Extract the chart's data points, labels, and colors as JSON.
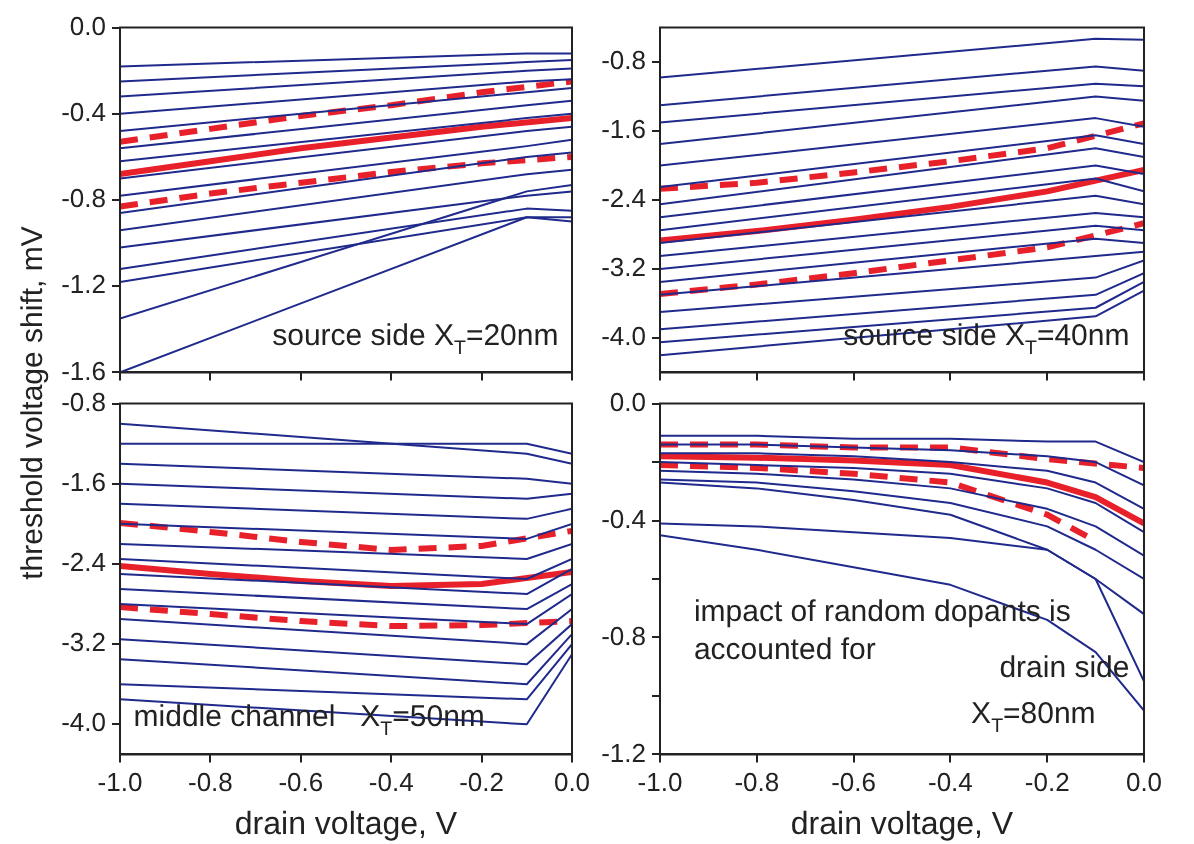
{
  "chart_data": [
    {
      "type": "line",
      "ylabel": "threshold voltage shift, mV",
      "xlim": [
        -1,
        0
      ],
      "ylim": [
        -1.6,
        0
      ],
      "xticks": [
        {
          "value": -1,
          "label": null
        },
        {
          "value": -0.8,
          "label": null
        },
        {
          "value": -0.6,
          "label": null
        },
        {
          "value": -0.4,
          "label": null
        },
        {
          "value": -0.2,
          "label": null
        },
        {
          "value": 0,
          "label": null
        }
      ],
      "yticks": [
        {
          "value": -1.6,
          "label": "-1.6"
        },
        {
          "value": -1.2,
          "label": "-1.2"
        },
        {
          "value": -0.8,
          "label": "-0.8"
        },
        {
          "value": -0.4,
          "label": "-0.4"
        },
        {
          "value": 0,
          "label": "0.0"
        }
      ],
      "tick_labels": "y",
      "grid": false,
      "legend": false,
      "marker": "none",
      "annotations": [
        "source side X$_{T}$=20nm"
      ],
      "x": [
        -1,
        -0.1,
        0
      ],
      "series": [
        {
          "color": "#1f2a8c",
          "values": [
            -0.18,
            -0.12,
            -0.12
          ]
        },
        {
          "color": "#1f2a8c",
          "values": [
            -0.25,
            -0.16,
            -0.15
          ]
        },
        {
          "color": "#1f2a8c",
          "values": [
            -0.32,
            -0.2,
            -0.19
          ]
        },
        {
          "color": "#1f2a8c",
          "values": [
            -0.4,
            -0.25,
            -0.24
          ]
        },
        {
          "color": "#1f2a8c",
          "values": [
            -0.48,
            -0.3,
            -0.28
          ]
        },
        {
          "color": "#1f2a8c",
          "values": [
            -0.56,
            -0.36,
            -0.34
          ]
        },
        {
          "color": "#1f2a8c",
          "values": [
            -0.62,
            -0.42,
            -0.4
          ]
        },
        {
          "color": "#1f2a8c",
          "values": [
            -0.7,
            -0.48,
            -0.46
          ]
        },
        {
          "color": "#1f2a8c",
          "values": [
            -0.78,
            -0.55,
            -0.52
          ]
        },
        {
          "color": "#1f2a8c",
          "values": [
            -0.86,
            -0.6,
            -0.58
          ]
        },
        {
          "color": "#1f2a8c",
          "values": [
            -0.94,
            -0.68,
            -0.66
          ]
        },
        {
          "color": "#1f2a8c",
          "values": [
            -1.02,
            -0.78,
            -0.76
          ]
        },
        {
          "color": "#1f2a8c",
          "values": [
            -1.12,
            -0.84,
            -0.85
          ]
        },
        {
          "color": "#1f2a8c",
          "values": [
            -1.18,
            -0.88,
            -0.9
          ]
        },
        {
          "color": "#1f2a8c",
          "values": [
            -1.35,
            -0.76,
            -0.73
          ]
        },
        {
          "color": "#1f2a8c",
          "values": [
            -1.6,
            -0.88,
            -0.88
          ]
        },
        {
          "color": "#e8202a",
          "line_style": "dashed",
          "x": [
            -1,
            -0.8,
            -0.6,
            -0.4,
            -0.2,
            0
          ],
          "values": [
            -0.53,
            -0.47,
            -0.41,
            -0.36,
            -0.3,
            -0.25
          ]
        },
        {
          "color": "#e8202a",
          "line_style": "solid",
          "x": [
            -1,
            -0.8,
            -0.6,
            -0.4,
            -0.2,
            0
          ],
          "values": [
            -0.68,
            -0.62,
            -0.56,
            -0.51,
            -0.46,
            -0.42
          ]
        },
        {
          "color": "#e8202a",
          "line_style": "dashed",
          "x": [
            -1,
            -0.8,
            -0.6,
            -0.4,
            -0.2,
            0
          ],
          "values": [
            -0.83,
            -0.77,
            -0.72,
            -0.67,
            -0.63,
            -0.6
          ]
        }
      ]
    },
    {
      "type": "line",
      "xlim": [
        -1,
        0
      ],
      "ylim": [
        -4.4,
        -0.4
      ],
      "xticks": [
        {
          "value": -1,
          "label": null
        },
        {
          "value": -0.8,
          "label": null
        },
        {
          "value": -0.6,
          "label": null
        },
        {
          "value": -0.4,
          "label": null
        },
        {
          "value": -0.2,
          "label": null
        },
        {
          "value": 0,
          "label": null
        }
      ],
      "yticks": [
        {
          "value": -4,
          "label": "-4.0"
        },
        {
          "value": -3.2,
          "label": "-3.2"
        },
        {
          "value": -2.4,
          "label": "-2.4"
        },
        {
          "value": -1.6,
          "label": "-1.6"
        },
        {
          "value": -0.8,
          "label": "-0.8"
        }
      ],
      "tick_labels": "y",
      "grid": false,
      "legend": false,
      "marker": "none",
      "annotations": [
        "source side X$_{T}$=40nm"
      ],
      "x": [
        -1,
        -0.1,
        0
      ],
      "series": [
        {
          "color": "#1f2a8c",
          "values": [
            -0.98,
            -0.53,
            -0.54
          ]
        },
        {
          "color": "#1f2a8c",
          "values": [
            -1.3,
            -0.85,
            -0.9
          ]
        },
        {
          "color": "#1f2a8c",
          "values": [
            -1.5,
            -1.05,
            -1.08
          ]
        },
        {
          "color": "#1f2a8c",
          "values": [
            -1.75,
            -1.2,
            -1.25
          ]
        },
        {
          "color": "#1f2a8c",
          "values": [
            -2.0,
            -1.45,
            -1.55
          ]
        },
        {
          "color": "#1f2a8c",
          "values": [
            -2.25,
            -1.65,
            -1.75
          ]
        },
        {
          "color": "#1f2a8c",
          "values": [
            -2.45,
            -1.8,
            -1.9
          ]
        },
        {
          "color": "#1f2a8c",
          "values": [
            -2.6,
            -2.0,
            -2.1
          ]
        },
        {
          "color": "#1f2a8c",
          "values": [
            -2.75,
            -2.15,
            -2.3
          ]
        },
        {
          "color": "#1f2a8c",
          "values": [
            -2.9,
            -2.35,
            -2.45
          ]
        },
        {
          "color": "#1f2a8c",
          "values": [
            -3.05,
            -2.55,
            -2.6
          ]
        },
        {
          "color": "#1f2a8c",
          "values": [
            -3.2,
            -2.7,
            -2.75
          ]
        },
        {
          "color": "#1f2a8c",
          "values": [
            -3.35,
            -2.85,
            -2.9
          ]
        },
        {
          "color": "#1f2a8c",
          "values": [
            -3.5,
            -3.05,
            -3.0
          ]
        },
        {
          "color": "#1f2a8c",
          "values": [
            -3.7,
            -3.3,
            -3.1
          ]
        },
        {
          "color": "#1f2a8c",
          "values": [
            -3.9,
            -3.5,
            -3.25
          ]
        },
        {
          "color": "#1f2a8c",
          "values": [
            -4.05,
            -3.65,
            -3.35
          ]
        },
        {
          "color": "#1f2a8c",
          "values": [
            -4.2,
            -3.75,
            -3.45
          ]
        },
        {
          "color": "#e8202a",
          "line_style": "dashed",
          "x": [
            -1,
            -0.8,
            -0.6,
            -0.4,
            -0.2,
            0
          ],
          "values": [
            -2.27,
            -2.2,
            -2.08,
            -1.95,
            -1.8,
            -1.51
          ]
        },
        {
          "color": "#e8202a",
          "line_style": "solid",
          "x": [
            -1,
            -0.8,
            -0.6,
            -0.4,
            -0.2,
            0
          ],
          "values": [
            -2.87,
            -2.76,
            -2.63,
            -2.48,
            -2.3,
            -2.05
          ]
        },
        {
          "color": "#e8202a",
          "line_style": "dashed",
          "x": [
            -1,
            -0.8,
            -0.6,
            -0.4,
            -0.2,
            0
          ],
          "values": [
            -3.49,
            -3.38,
            -3.25,
            -3.1,
            -2.95,
            -2.67
          ]
        }
      ]
    },
    {
      "type": "line",
      "xlabel": "drain voltage, V",
      "xlim": [
        -1,
        0
      ],
      "ylim": [
        -4.3,
        -0.8
      ],
      "xticks": [
        {
          "value": -1,
          "label": "-1.0"
        },
        {
          "value": -0.8,
          "label": "-0.8"
        },
        {
          "value": -0.6,
          "label": "-0.6"
        },
        {
          "value": -0.4,
          "label": "-0.4"
        },
        {
          "value": -0.2,
          "label": "-0.2"
        },
        {
          "value": 0,
          "label": "0.0"
        }
      ],
      "yticks": [
        {
          "value": -4,
          "label": "-4.0"
        },
        {
          "value": -3.2,
          "label": "-3.2"
        },
        {
          "value": -2.4,
          "label": "-2.4"
        },
        {
          "value": -1.6,
          "label": "-1.6"
        },
        {
          "value": -0.8,
          "label": "-0.8"
        }
      ],
      "grid": false,
      "legend": false,
      "marker": "none",
      "annotations": [
        "middle channel   X$_{T}$=50nm"
      ],
      "x": [
        -1,
        -0.1,
        0
      ],
      "series": [
        {
          "color": "#1f2a8c",
          "values": [
            -1.0,
            -1.3,
            -1.4
          ]
        },
        {
          "color": "#1f2a8c",
          "values": [
            -1.2,
            -1.2,
            -1.3
          ]
        },
        {
          "color": "#1f2a8c",
          "values": [
            -1.4,
            -1.55,
            -1.6
          ]
        },
        {
          "color": "#1f2a8c",
          "values": [
            -1.6,
            -1.75,
            -1.7
          ]
        },
        {
          "color": "#1f2a8c",
          "values": [
            -1.8,
            -1.95,
            -1.85
          ]
        },
        {
          "color": "#1f2a8c",
          "values": [
            -2.0,
            -2.15,
            -2.0
          ]
        },
        {
          "color": "#1f2a8c",
          "values": [
            -2.2,
            -2.35,
            -2.2
          ]
        },
        {
          "color": "#1f2a8c",
          "values": [
            -2.35,
            -2.55,
            -2.35
          ]
        },
        {
          "color": "#1f2a8c",
          "values": [
            -2.5,
            -2.7,
            -2.45
          ]
        },
        {
          "color": "#1f2a8c",
          "values": [
            -2.65,
            -2.85,
            -2.6
          ]
        },
        {
          "color": "#1f2a8c",
          "values": [
            -2.8,
            -3.0,
            -2.7
          ]
        },
        {
          "color": "#1f2a8c",
          "values": [
            -2.95,
            -3.2,
            -2.85
          ]
        },
        {
          "color": "#1f2a8c",
          "values": [
            -3.15,
            -3.4,
            -3.0
          ]
        },
        {
          "color": "#1f2a8c",
          "values": [
            -3.35,
            -3.6,
            -3.1
          ]
        },
        {
          "color": "#1f2a8c",
          "values": [
            -3.6,
            -3.75,
            -3.2
          ]
        },
        {
          "color": "#1f2a8c",
          "values": [
            -3.75,
            -4.0,
            -3.3
          ]
        },
        {
          "color": "#e8202a",
          "line_style": "dashed",
          "x": [
            -1,
            -0.8,
            -0.6,
            -0.4,
            -0.2,
            0
          ],
          "values": [
            -1.99,
            -2.08,
            -2.18,
            -2.26,
            -2.22,
            -2.07
          ]
        },
        {
          "color": "#e8202a",
          "line_style": "solid",
          "x": [
            -1,
            -0.8,
            -0.6,
            -0.4,
            -0.2,
            0
          ],
          "values": [
            -2.42,
            -2.5,
            -2.57,
            -2.62,
            -2.6,
            -2.48
          ]
        },
        {
          "color": "#e8202a",
          "line_style": "dashed",
          "x": [
            -1,
            -0.8,
            -0.6,
            -0.4,
            -0.2,
            0
          ],
          "values": [
            -2.83,
            -2.9,
            -2.97,
            -3.02,
            -3.01,
            -2.97
          ]
        }
      ]
    },
    {
      "type": "line",
      "xlabel": "drain voltage, V",
      "xlim": [
        -1,
        0
      ],
      "ylim": [
        -1.2,
        0
      ],
      "xticks": [
        {
          "value": -1,
          "label": "-1.0"
        },
        {
          "value": -0.8,
          "label": "-0.8"
        },
        {
          "value": -0.6,
          "label": "-0.6"
        },
        {
          "value": -0.4,
          "label": "-0.4"
        },
        {
          "value": -0.2,
          "label": "-0.2"
        },
        {
          "value": 0,
          "label": "0.0"
        }
      ],
      "yticks": [
        {
          "value": -1.2,
          "label": "-1.2"
        },
        {
          "value": -1,
          "label": null
        },
        {
          "value": -0.8,
          "label": "-0.8"
        },
        {
          "value": -0.6,
          "label": null
        },
        {
          "value": -0.4,
          "label": "-0.4"
        },
        {
          "value": -0.2,
          "label": null
        },
        {
          "value": 0,
          "label": "0.0"
        }
      ],
      "grid": false,
      "legend": false,
      "marker": "none",
      "annotations": [
        "impact of random dopants is accounted for",
        "drain side",
        "X$_{T}$=80nm"
      ],
      "x": [
        -1,
        -0.8,
        -0.6,
        -0.4,
        -0.2,
        -0.1,
        0
      ],
      "series": [
        {
          "color": "#1f2a8c",
          "values": [
            -0.11,
            -0.11,
            -0.12,
            -0.12,
            -0.13,
            -0.13,
            -0.2
          ]
        },
        {
          "color": "#1f2a8c",
          "values": [
            -0.14,
            -0.14,
            -0.15,
            -0.16,
            -0.18,
            -0.2,
            -0.28
          ]
        },
        {
          "color": "#1f2a8c",
          "values": [
            -0.17,
            -0.17,
            -0.18,
            -0.2,
            -0.23,
            -0.27,
            -0.36
          ]
        },
        {
          "color": "#1f2a8c",
          "values": [
            -0.2,
            -0.21,
            -0.22,
            -0.24,
            -0.29,
            -0.34,
            -0.44
          ]
        },
        {
          "color": "#1f2a8c",
          "values": [
            -0.23,
            -0.24,
            -0.26,
            -0.29,
            -0.36,
            -0.42,
            -0.52
          ]
        },
        {
          "color": "#1f2a8c",
          "values": [
            -0.26,
            -0.27,
            -0.3,
            -0.34,
            -0.42,
            -0.5,
            -0.6
          ]
        },
        {
          "color": "#1f2a8c",
          "values": [
            -0.27,
            -0.29,
            -0.33,
            -0.38,
            -0.5,
            -0.6,
            -0.72
          ]
        },
        {
          "color": "#1f2a8c",
          "values": [
            -0.41,
            -0.42,
            -0.44,
            -0.46,
            -0.5,
            -0.6,
            -0.95
          ]
        },
        {
          "color": "#1f2a8c",
          "values": [
            -0.45,
            -0.5,
            -0.56,
            -0.62,
            -0.74,
            -0.85,
            -1.05
          ]
        },
        {
          "color": "#e8202a",
          "line_style": "dashed",
          "x": [
            -1,
            -0.8,
            -0.6,
            -0.4,
            -0.2,
            0
          ],
          "values": [
            -0.14,
            -0.14,
            -0.15,
            -0.15,
            -0.19,
            -0.22
          ]
        },
        {
          "color": "#e8202a",
          "line_style": "solid",
          "x": [
            -1,
            -0.8,
            -0.6,
            -0.4,
            -0.2,
            -0.1,
            0
          ],
          "values": [
            -0.18,
            -0.185,
            -0.195,
            -0.21,
            -0.27,
            -0.32,
            -0.41
          ]
        },
        {
          "color": "#e8202a",
          "line_style": "dashed",
          "x": [
            -1,
            -0.8,
            -0.6,
            -0.4,
            -0.2,
            -0.1
          ],
          "values": [
            -0.21,
            -0.22,
            -0.24,
            -0.27,
            -0.38,
            -0.47
          ]
        }
      ]
    }
  ]
}
